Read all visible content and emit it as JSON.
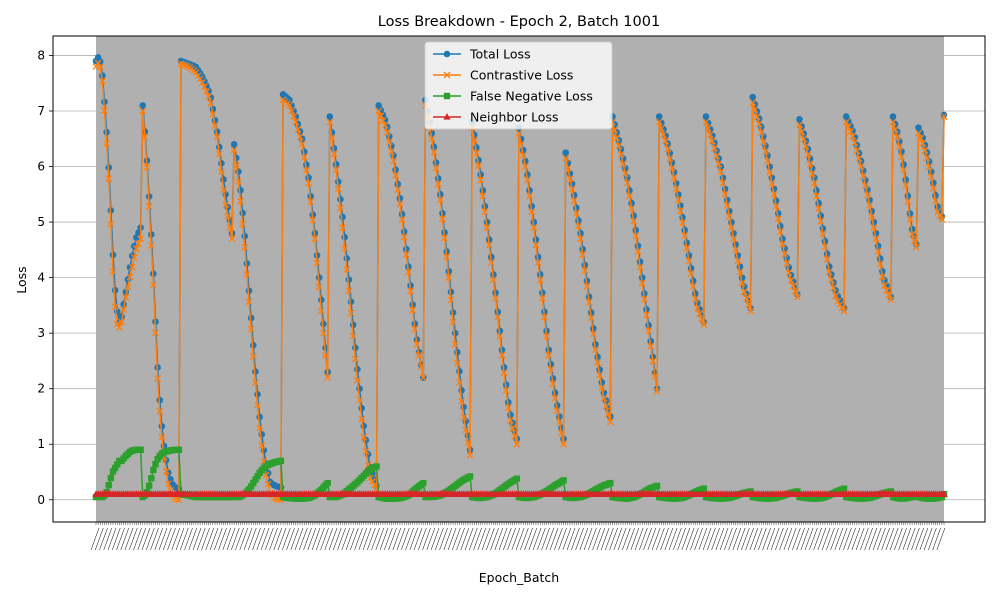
{
  "chart_data": {
    "type": "line",
    "title": "Loss Breakdown - Epoch 2, Batch 1001",
    "xlabel": "Epoch_Batch",
    "ylabel": "Loss",
    "ylim": [
      -0.4,
      8.35
    ],
    "yticks": [
      0,
      1,
      2,
      3,
      4,
      5,
      6,
      7,
      8
    ],
    "grid": "y-only",
    "legend_position": "upper center",
    "x_tick_labels_note": "dense rotated tick labels, unreadable",
    "series_meta": [
      {
        "name": "Total Loss",
        "color": "#1f77b4",
        "marker": "circle"
      },
      {
        "name": "Contrastive Loss",
        "color": "#ff7f0e",
        "marker": "x"
      },
      {
        "name": "False Negative Loss",
        "color": "#2ca02c",
        "marker": "square"
      },
      {
        "name": "Neighbor Loss",
        "color": "#d62728",
        "marker": "triangle"
      }
    ],
    "n_points": 400,
    "segments": [
      {
        "start": 0,
        "end": 12,
        "total": [
          7.9,
          8.0,
          7.6,
          6.8,
          5.8,
          4.5,
          3.5,
          3.2
        ],
        "contrastive": [
          7.8,
          7.9,
          7.5,
          6.6,
          5.6,
          4.2,
          3.2,
          3.1
        ],
        "fn": [
          0.05,
          0.05,
          0.05,
          0.1,
          0.3,
          0.5,
          0.6,
          0.7
        ]
      },
      {
        "start": 12,
        "end": 22,
        "total": [
          3.3,
          3.8,
          4.3,
          4.7,
          4.9
        ],
        "contrastive": [
          3.2,
          3.7,
          4.1,
          4.5,
          4.7
        ],
        "fn": [
          0.7,
          0.8,
          0.88,
          0.9,
          0.9
        ]
      },
      {
        "start": 22,
        "end": 40,
        "total": [
          7.1,
          6.3,
          5.2,
          4.0,
          2.5,
          1.5,
          0.9,
          0.5,
          0.3,
          0.22,
          0.2
        ],
        "contrastive": [
          7.0,
          6.2,
          5.0,
          3.8,
          2.3,
          1.3,
          0.7,
          0.3,
          0.1,
          0.02,
          0.0
        ],
        "fn": [
          0.05,
          0.1,
          0.3,
          0.55,
          0.72,
          0.82,
          0.86,
          0.88,
          0.89,
          0.9,
          0.9
        ]
      },
      {
        "start": 40,
        "end": 65,
        "total": [
          7.9,
          7.85,
          7.8,
          7.6,
          7.3,
          6.6,
          5.6,
          4.8
        ],
        "contrastive": [
          7.85,
          7.8,
          7.7,
          7.5,
          7.2,
          6.5,
          5.4,
          4.7
        ],
        "fn": [
          0.1,
          0.08,
          0.05,
          0.05,
          0.05,
          0.05,
          0.05,
          0.05
        ]
      },
      {
        "start": 65,
        "end": 88,
        "total": [
          6.4,
          5.8,
          4.8,
          3.6,
          2.4,
          1.4,
          0.7,
          0.3,
          0.25,
          0.22
        ],
        "contrastive": [
          6.3,
          5.6,
          4.6,
          3.4,
          2.2,
          1.2,
          0.5,
          0.1,
          0.02,
          0.0
        ],
        "fn": [
          0.05,
          0.05,
          0.1,
          0.2,
          0.35,
          0.5,
          0.6,
          0.65,
          0.68,
          0.7
        ]
      },
      {
        "start": 88,
        "end": 110,
        "total": [
          7.3,
          7.2,
          6.9,
          6.5,
          5.8,
          4.8,
          3.6,
          2.3
        ],
        "contrastive": [
          7.2,
          7.1,
          6.8,
          6.4,
          5.7,
          4.7,
          3.4,
          2.2
        ],
        "fn": [
          0.05,
          0.03,
          0.02,
          0.02,
          0.03,
          0.08,
          0.18,
          0.3
        ]
      },
      {
        "start": 110,
        "end": 133,
        "total": [
          6.9,
          6.0,
          5.0,
          3.8,
          2.5,
          1.4,
          0.6,
          0.25
        ],
        "contrastive": [
          6.8,
          5.9,
          4.8,
          3.6,
          2.3,
          1.2,
          0.4,
          0.2
        ],
        "fn": [
          0.05,
          0.05,
          0.1,
          0.2,
          0.3,
          0.42,
          0.55,
          0.6
        ]
      },
      {
        "start": 133,
        "end": 155,
        "total": [
          7.1,
          6.8,
          6.2,
          5.3,
          4.2,
          3.0,
          2.2
        ],
        "contrastive": [
          7.0,
          6.7,
          6.1,
          5.2,
          4.1,
          2.9,
          2.2
        ],
        "fn": [
          0.05,
          0.02,
          0.02,
          0.03,
          0.08,
          0.2,
          0.3
        ]
      },
      {
        "start": 155,
        "end": 177,
        "total": [
          7.2,
          6.5,
          5.5,
          4.3,
          3.0,
          1.8,
          0.9
        ],
        "contrastive": [
          7.1,
          6.4,
          5.4,
          4.2,
          2.8,
          1.6,
          0.8
        ],
        "fn": [
          0.05,
          0.05,
          0.08,
          0.15,
          0.25,
          0.35,
          0.42
        ]
      },
      {
        "start": 177,
        "end": 199,
        "total": [
          6.8,
          6.0,
          5.0,
          3.9,
          2.7,
          1.6,
          1.1
        ],
        "contrastive": [
          6.7,
          5.9,
          4.9,
          3.8,
          2.6,
          1.5,
          1.0
        ],
        "fn": [
          0.05,
          0.03,
          0.05,
          0.1,
          0.2,
          0.3,
          0.38
        ]
      },
      {
        "start": 199,
        "end": 221,
        "total": [
          6.7,
          6.0,
          5.0,
          3.9,
          2.7,
          1.8,
          1.1
        ],
        "contrastive": [
          6.6,
          5.9,
          4.9,
          3.8,
          2.6,
          1.7,
          1.0
        ],
        "fn": [
          0.05,
          0.03,
          0.05,
          0.1,
          0.18,
          0.27,
          0.35
        ]
      },
      {
        "start": 221,
        "end": 243,
        "total": [
          6.25,
          5.6,
          4.8,
          3.8,
          2.8,
          2.0,
          1.5
        ],
        "contrastive": [
          6.15,
          5.5,
          4.7,
          3.7,
          2.7,
          1.9,
          1.4
        ],
        "fn": [
          0.05,
          0.03,
          0.05,
          0.1,
          0.18,
          0.25,
          0.3
        ]
      },
      {
        "start": 243,
        "end": 265,
        "total": [
          6.9,
          6.4,
          5.8,
          5.0,
          4.0,
          3.0,
          2.0
        ],
        "contrastive": [
          6.8,
          6.3,
          5.7,
          4.9,
          3.9,
          2.9,
          1.95
        ],
        "fn": [
          0.05,
          0.03,
          0.02,
          0.05,
          0.12,
          0.2,
          0.25
        ]
      },
      {
        "start": 265,
        "end": 287,
        "total": [
          6.9,
          6.5,
          5.9,
          5.2,
          4.4,
          3.6,
          3.2
        ],
        "contrastive": [
          6.8,
          6.4,
          5.8,
          5.1,
          4.3,
          3.5,
          3.15
        ],
        "fn": [
          0.05,
          0.03,
          0.02,
          0.03,
          0.08,
          0.15,
          0.2
        ]
      },
      {
        "start": 287,
        "end": 309,
        "total": [
          6.9,
          6.5,
          6.0,
          5.3,
          4.6,
          3.9,
          3.45
        ],
        "contrastive": [
          6.8,
          6.4,
          5.9,
          5.2,
          4.5,
          3.8,
          3.4
        ],
        "fn": [
          0.05,
          0.03,
          0.02,
          0.03,
          0.07,
          0.12,
          0.15
        ]
      },
      {
        "start": 309,
        "end": 331,
        "total": [
          7.25,
          6.8,
          6.2,
          5.5,
          4.7,
          4.1,
          3.7
        ],
        "contrastive": [
          7.15,
          6.7,
          6.1,
          5.4,
          4.6,
          4.0,
          3.65
        ],
        "fn": [
          0.05,
          0.03,
          0.02,
          0.03,
          0.07,
          0.12,
          0.15
        ]
      },
      {
        "start": 331,
        "end": 353,
        "total": [
          6.85,
          6.4,
          5.8,
          5.0,
          4.2,
          3.7,
          3.45
        ],
        "contrastive": [
          6.75,
          6.3,
          5.7,
          4.9,
          4.1,
          3.6,
          3.4
        ],
        "fn": [
          0.05,
          0.03,
          0.02,
          0.03,
          0.08,
          0.15,
          0.2
        ]
      },
      {
        "start": 353,
        "end": 375,
        "total": [
          6.9,
          6.6,
          6.1,
          5.5,
          4.8,
          4.0,
          3.65
        ],
        "contrastive": [
          6.8,
          6.5,
          6.0,
          5.4,
          4.7,
          3.9,
          3.6
        ],
        "fn": [
          0.05,
          0.03,
          0.02,
          0.03,
          0.07,
          0.12,
          0.15
        ]
      },
      {
        "start": 375,
        "end": 387,
        "total": [
          6.9,
          6.6,
          6.2,
          5.6,
          4.9,
          4.6
        ],
        "contrastive": [
          6.8,
          6.5,
          6.1,
          5.5,
          4.8,
          4.55
        ],
        "fn": [
          0.05,
          0.03,
          0.02,
          0.03,
          0.05,
          0.07
        ]
      },
      {
        "start": 387,
        "end": 399,
        "total": [
          6.7,
          6.5,
          6.2,
          5.8,
          5.3,
          5.1
        ],
        "contrastive": [
          6.6,
          6.4,
          6.1,
          5.7,
          5.2,
          5.05
        ],
        "fn": [
          0.05,
          0.03,
          0.02,
          0.02,
          0.03,
          0.05
        ]
      },
      {
        "start": 399,
        "end": 400,
        "total": [
          6.93
        ],
        "contrastive": [
          6.9
        ],
        "fn": [
          0.1
        ]
      }
    ],
    "neighbor_loss_value": 0.1
  }
}
